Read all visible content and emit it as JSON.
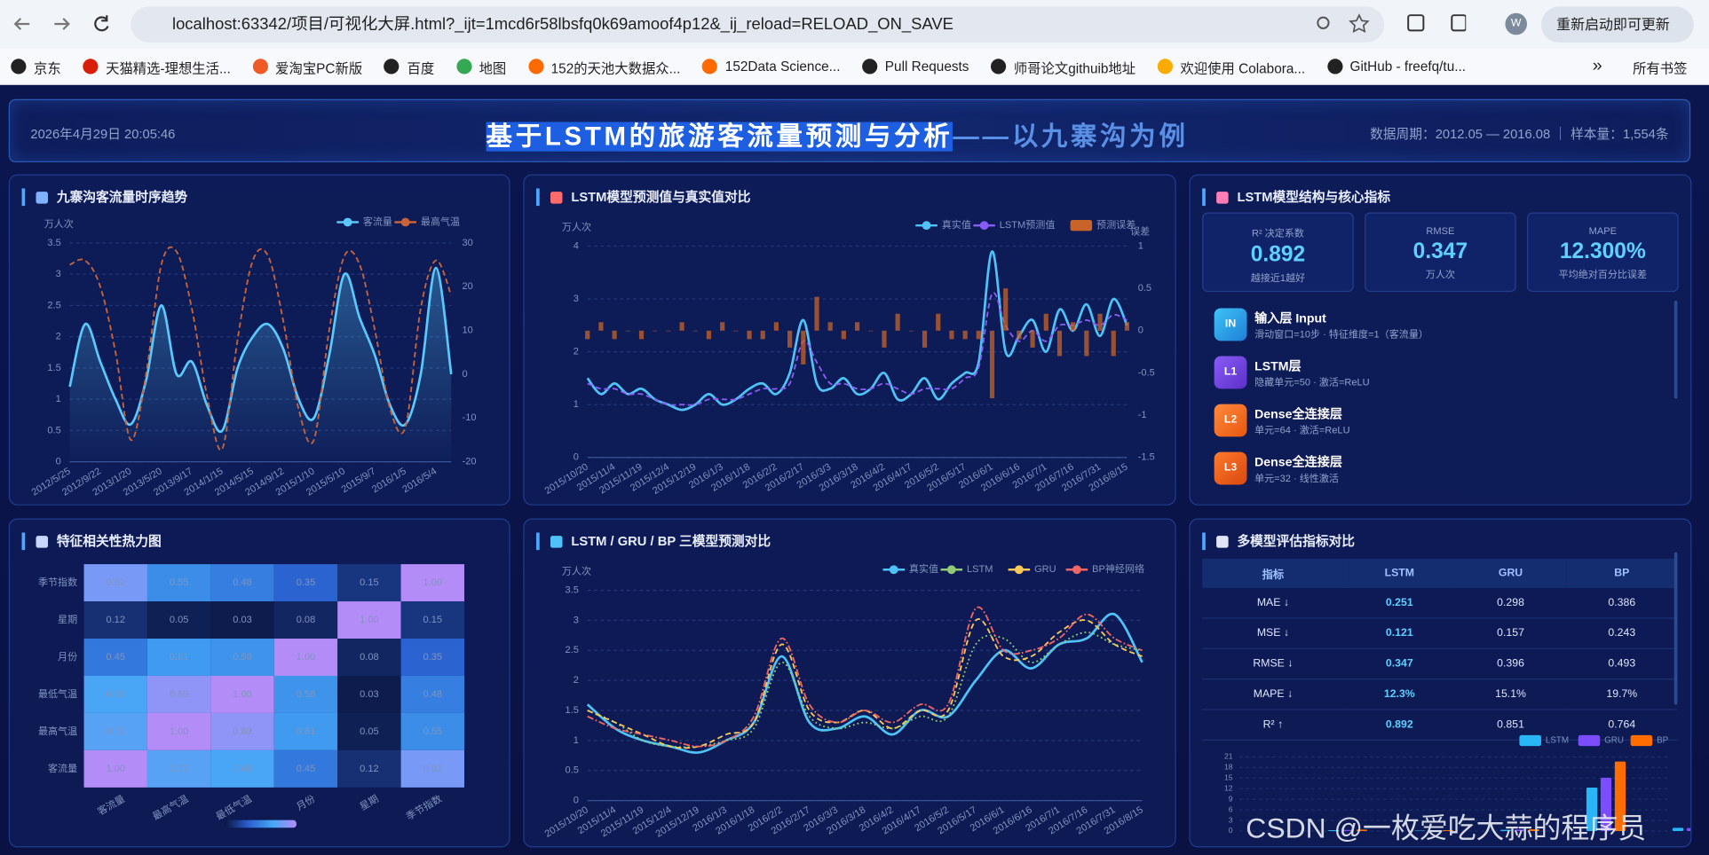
{
  "browser": {
    "url": "localhost:63342/项目/可视化大屏.html?_ijt=1mcd6r58lbsfq0k69amoof4p12&_ij_reload=RELOAD_ON_SAVE",
    "update_button": "重新启动即可更新",
    "profile": "W",
    "bookmarks": [
      "京东",
      "天猫精选-理想生活...",
      "爱淘宝PC新版",
      "百度",
      "地图",
      "152的天池大数据众...",
      "152Data Science...",
      "Pull Requests",
      "师哥论文githuib地址",
      "欢迎使用 Colabora...",
      "GitHub - freefq/tu..."
    ],
    "more": "»",
    "all_bookmarks": "所有书签"
  },
  "header": {
    "datetime": "2026年4月29日 20:05:46",
    "title": "基于LSTM的旅游客流量预测与分析",
    "title_suffix": "——以九寨沟为例",
    "meta": "数据周期：2012.05 — 2016.08 ｜ 样本量：1,554条"
  },
  "trend": {
    "title": "九寨沟客流量时序趋势",
    "chart": {
      "type": "line",
      "y_label": "万人次",
      "categories": [
        "2012/5/25",
        null,
        "2012/9/22",
        null,
        "2013/1/20",
        null,
        "2013/5/20",
        null,
        "2013/9/17",
        null,
        "2014/1/15",
        null,
        "2014/5/15",
        null,
        "2014/9/12",
        null,
        "2015/1/10",
        null,
        "2015/5/10",
        null,
        "2015/9/7",
        null,
        "2016/1/5",
        null,
        "2016/5/4",
        null
      ],
      "series": [
        {
          "name": "客流量",
          "color": "#5ac8fa",
          "style": "solid",
          "area": true,
          "values": [
            1.2,
            2.2,
            1.6,
            1.0,
            0.6,
            1.3,
            2.5,
            1.4,
            1.6,
            0.9,
            0.5,
            1.5,
            2.0,
            2.2,
            1.8,
            1.0,
            0.7,
            1.7,
            3.0,
            2.3,
            1.7,
            0.9,
            0.6,
            1.4,
            3.1,
            1.4
          ]
        },
        {
          "name": "最高气温",
          "color": "#c8643c",
          "style": "dashed",
          "axis": "y2",
          "values": [
            25,
            26,
            20,
            5,
            -15,
            0,
            25,
            28,
            15,
            -5,
            -17,
            8,
            26,
            27,
            12,
            -8,
            -15,
            10,
            27,
            25,
            10,
            -8,
            -12,
            15,
            26,
            18
          ]
        }
      ],
      "ylim": [
        0,
        3.5
      ],
      "yticks": [
        0,
        0.5,
        1,
        1.5,
        2,
        2.5,
        3,
        3.5
      ],
      "y2lim": [
        -20,
        30
      ],
      "y2ticks": [
        -20,
        -10,
        0,
        10,
        20,
        30
      ],
      "grid": true
    }
  },
  "compare": {
    "title": "LSTM模型预测值与真实值对比",
    "chart": {
      "type": "line",
      "y_label": "万人次",
      "y2_label": "误差",
      "categories": [
        "2015/10/20",
        null,
        "2015/11/4",
        null,
        "2015/11/19",
        null,
        "2015/12/4",
        null,
        "2015/12/19",
        null,
        "2016/1/3",
        null,
        "2016/1/18",
        null,
        "2016/2/2",
        null,
        "2016/2/17",
        null,
        "2016/3/3",
        null,
        "2016/3/18",
        null,
        "2016/4/2",
        null,
        "2016/4/17",
        null,
        "2016/5/2",
        null,
        "2016/5/17",
        null,
        "2016/6/1",
        null,
        "2016/6/16",
        null,
        "2016/7/1",
        null,
        "2016/7/16",
        null,
        "2016/7/31",
        null,
        "2016/8/15"
      ],
      "series": [
        {
          "name": "真实值",
          "color": "#4fc3f7",
          "style": "solid",
          "values": [
            1.5,
            1.2,
            1.4,
            1.2,
            1.3,
            1.1,
            1.0,
            0.9,
            1.0,
            1.2,
            1.0,
            1.1,
            1.3,
            1.4,
            1.2,
            1.6,
            2.6,
            1.4,
            1.3,
            1.5,
            1.2,
            1.3,
            1.6,
            1.1,
            1.2,
            1.5,
            1.1,
            1.4,
            1.6,
            1.8,
            3.9,
            2.0,
            2.3,
            2.6,
            2.0,
            2.8,
            2.4,
            2.9,
            2.3,
            3.0,
            2.5
          ]
        },
        {
          "name": "LSTM预测值",
          "color": "#8a5cf6",
          "style": "dashed",
          "values": [
            1.4,
            1.3,
            1.3,
            1.2,
            1.2,
            1.1,
            1.0,
            1.0,
            1.0,
            1.1,
            1.1,
            1.1,
            1.2,
            1.3,
            1.3,
            1.4,
            2.2,
            1.8,
            1.4,
            1.4,
            1.3,
            1.3,
            1.4,
            1.3,
            1.2,
            1.3,
            1.3,
            1.3,
            1.5,
            1.7,
            3.1,
            2.5,
            2.2,
            2.4,
            2.2,
            2.5,
            2.5,
            2.6,
            2.5,
            2.7,
            2.6
          ]
        },
        {
          "name": "预测误差",
          "color": "#c8642a",
          "style": "bar",
          "axis": "y2",
          "values": [
            -0.1,
            0.1,
            -0.1,
            0,
            -0.1,
            0,
            0,
            0.1,
            0,
            -0.1,
            0.1,
            0,
            -0.1,
            -0.1,
            0.1,
            -0.2,
            -0.4,
            0.4,
            0.1,
            -0.1,
            0.1,
            0,
            -0.2,
            0.2,
            0,
            -0.2,
            0.2,
            -0.1,
            -0.1,
            -0.1,
            -0.8,
            0.5,
            -0.1,
            -0.2,
            0.2,
            -0.3,
            0.1,
            -0.3,
            0.2,
            -0.3,
            0.1
          ]
        }
      ],
      "ylim": [
        0,
        4
      ],
      "yticks": [
        0,
        1,
        2,
        3,
        4
      ],
      "y2lim": [
        -1.5,
        1
      ],
      "y2ticks": [
        -1.5,
        -1,
        -0.5,
        0,
        0.5,
        1
      ],
      "grid": true
    }
  },
  "model": {
    "title": "LSTM模型结构与核心指标",
    "metrics": [
      {
        "label": "R² 决定系数",
        "value": "0.892",
        "note": "越接近1越好"
      },
      {
        "label": "RMSE",
        "value": "0.347",
        "note": "万人次"
      },
      {
        "label": "MAPE",
        "value": "12.300%",
        "note": "平均绝对百分比误差"
      }
    ],
    "layers": [
      {
        "badge": "IN",
        "name": "输入层 Input",
        "desc": "滑动窗口=10步 · 特征维度=1（客流量）"
      },
      {
        "badge": "L1",
        "name": "LSTM层",
        "desc": "隐藏单元=50 · 激活=ReLU"
      },
      {
        "badge": "L2",
        "name": "Dense全连接层",
        "desc": "单元=64 · 激活=ReLU"
      },
      {
        "badge": "L3",
        "name": "Dense全连接层",
        "desc": "单元=32 · 线性激活"
      }
    ]
  },
  "heatmap": {
    "title": "特征相关性热力图",
    "chart": {
      "type": "heatmap",
      "rows": [
        "季节指数",
        "星期",
        "月份",
        "最低气温",
        "最高气温",
        "客流量"
      ],
      "columns": [
        "客流量",
        "最高气温",
        "最低气温",
        "月份",
        "星期",
        "季节指数"
      ],
      "values": [
        [
          0.82,
          0.55,
          0.48,
          0.35,
          0.15,
          1.0
        ],
        [
          0.12,
          0.05,
          0.03,
          0.08,
          1.0,
          0.15
        ],
        [
          0.45,
          0.61,
          0.58,
          1.0,
          0.08,
          0.35
        ],
        [
          0.68,
          0.89,
          1.0,
          0.58,
          0.03,
          0.48
        ],
        [
          0.72,
          1.0,
          0.89,
          0.61,
          0.05,
          0.55
        ],
        [
          1.0,
          0.72,
          0.68,
          0.45,
          0.12,
          0.82
        ]
      ],
      "value_labels": [
        [
          "0.82",
          "0.55",
          "0.48",
          "0.35",
          "0.15",
          "1.00"
        ],
        [
          "0.12",
          "0.05",
          "0.03",
          "0.08",
          "1.00",
          "0.15"
        ],
        [
          "0.45",
          "0.61",
          "0.58",
          "1.00",
          "0.08",
          "0.35"
        ],
        [
          "0.68",
          "0.89",
          "1.00",
          "0.58",
          "0.03",
          "0.48"
        ],
        [
          "0.72",
          "1.00",
          "0.89",
          "0.61",
          "0.05",
          "0.55"
        ],
        [
          "1.00",
          "0.72",
          "0.68",
          "0.45",
          "0.12",
          "0.82"
        ]
      ],
      "colorscale": [
        "#0a1540",
        "#2a5fcf",
        "#45a6f5",
        "#b48cf8"
      ]
    }
  },
  "models": {
    "title": "LSTM / GRU / BP 三模型预测对比",
    "chart": {
      "type": "line",
      "y_label": "万人次",
      "categories": [
        "2015/10/20",
        "2015/11/4",
        "2015/11/19",
        "2015/12/4",
        "2015/12/19",
        "2016/1/3",
        "2016/1/18",
        "2016/2/2",
        "2016/2/17",
        "2016/3/3",
        "2016/3/18",
        "2016/4/2",
        "2016/4/17",
        "2016/5/2",
        "2016/5/17",
        "2016/6/1",
        "2016/6/16",
        "2016/7/1",
        "2016/7/16",
        "2016/7/31",
        "2016/8/15"
      ],
      "series": [
        {
          "name": "真实值",
          "color": "#4fc3f7",
          "style": "solid",
          "values": [
            1.6,
            1.2,
            1.0,
            0.9,
            0.8,
            1.0,
            1.3,
            2.4,
            1.3,
            1.2,
            1.4,
            1.1,
            1.5,
            1.4,
            2.0,
            2.5,
            2.2,
            2.6,
            2.7,
            3.1,
            2.3
          ]
        },
        {
          "name": "LSTM",
          "color": "#91cc75",
          "style": "dotted",
          "values": [
            1.5,
            1.3,
            1.0,
            0.9,
            0.9,
            1.0,
            1.2,
            2.3,
            1.4,
            1.2,
            1.3,
            1.2,
            1.4,
            1.4,
            2.6,
            2.7,
            2.3,
            2.6,
            2.8,
            2.6,
            2.5
          ]
        },
        {
          "name": "GRU",
          "color": "#fac858",
          "style": "dashed",
          "values": [
            1.5,
            1.3,
            1.1,
            0.9,
            0.9,
            1.1,
            1.3,
            2.6,
            1.5,
            1.3,
            1.5,
            1.2,
            1.5,
            1.5,
            3.0,
            2.4,
            2.4,
            2.8,
            3.0,
            2.6,
            2.4
          ]
        },
        {
          "name": "BP神经网络",
          "color": "#ee6666",
          "style": "dashdot",
          "values": [
            1.4,
            1.2,
            1.1,
            1.0,
            0.9,
            1.0,
            1.4,
            2.7,
            1.6,
            1.3,
            1.5,
            1.3,
            1.6,
            1.6,
            3.2,
            2.5,
            2.5,
            2.7,
            3.1,
            2.7,
            2.5
          ]
        }
      ],
      "ylim": [
        0,
        3.5
      ],
      "yticks": [
        0,
        0.5,
        1,
        1.5,
        2,
        2.5,
        3,
        3.5
      ],
      "grid": true
    }
  },
  "evaluation": {
    "title": "多模型评估指标对比",
    "table": {
      "header": [
        "指标",
        "LSTM",
        "GRU",
        "BP"
      ],
      "rows": [
        [
          "MAE ↓",
          "0.251",
          "0.298",
          "0.386"
        ],
        [
          "MSE ↓",
          "0.121",
          "0.157",
          "0.243"
        ],
        [
          "RMSE ↓",
          "0.347",
          "0.396",
          "0.493"
        ],
        [
          "MAPE ↓",
          "12.3%",
          "15.1%",
          "19.7%"
        ],
        [
          "R² ↑",
          "0.892",
          "0.851",
          "0.764"
        ]
      ]
    },
    "chart": {
      "type": "bar",
      "categories": [
        null,
        null,
        null,
        null,
        null
      ],
      "series": [
        {
          "name": "LSTM",
          "color": "#29b6f6",
          "values": [
            0.251,
            0.121,
            0.347,
            12.3,
            0.892
          ]
        },
        {
          "name": "GRU",
          "color": "#7c4dff",
          "values": [
            0.298,
            0.157,
            0.396,
            15.1,
            0.851
          ]
        },
        {
          "name": "BP",
          "color": "#ff6d00",
          "values": [
            0.386,
            0.243,
            0.493,
            19.7,
            0.764
          ]
        }
      ],
      "ylim": [
        0,
        21
      ],
      "yticks": [
        0,
        3,
        6,
        9,
        12,
        15,
        18,
        21
      ],
      "grid": true
    }
  },
  "watermark": "CSDN @一枚爱吃大蒜的程序员"
}
